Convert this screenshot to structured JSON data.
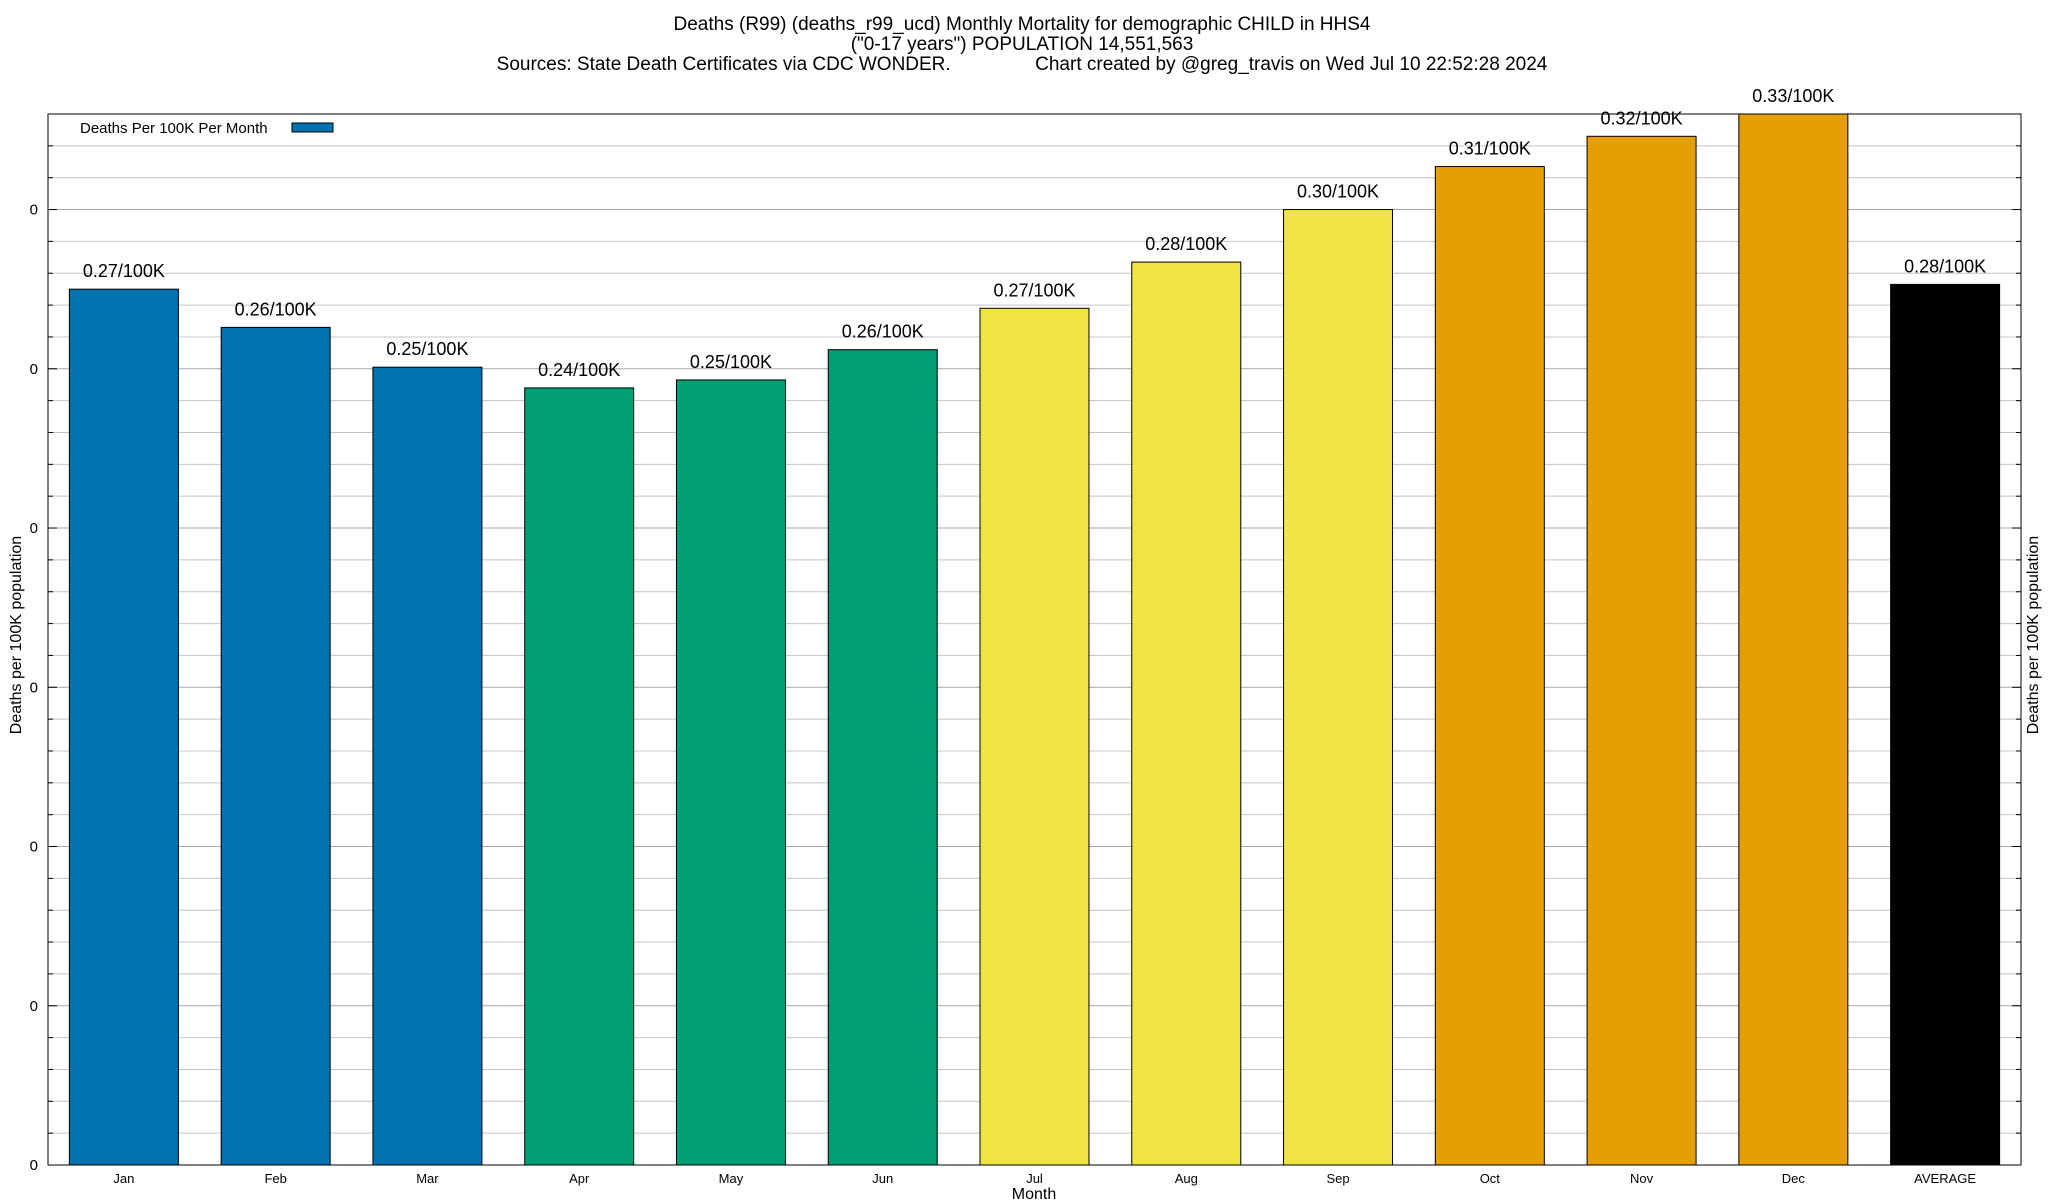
{
  "chart_data": {
    "type": "bar",
    "title_lines": [
      "Deaths (R99) (deaths_r99_ucd) Monthly Mortality for demographic CHILD in HHS4",
      "(\"0-17 years\") POPULATION 14,551,563",
      "Sources: State Death Certificates via CDC WONDER.                Chart created by @greg_travis on Wed Jul 10 22:52:28 2024"
    ],
    "xlabel": "Month",
    "ylabel": "Deaths per 100K population",
    "y2label": "Deaths per 100K population",
    "legend": {
      "label": "Deaths Per 100K Per Month",
      "color": "#0072b2",
      "placement": "top-left"
    },
    "ylim": [
      0,
      0.33
    ],
    "y_ticks": [
      0,
      0.05,
      0.1,
      0.15,
      0.2,
      0.25,
      0.3
    ],
    "y_tick_labels": [
      "0",
      "0",
      "0",
      "0",
      "0",
      "0",
      "0"
    ],
    "grid": true,
    "categories": [
      "Jan",
      "Feb",
      "Mar",
      "Apr",
      "May",
      "Jun",
      "Jul",
      "Aug",
      "Sep",
      "Oct",
      "Nov",
      "Dec",
      "AVERAGE"
    ],
    "values": [
      0.275,
      0.263,
      0.2505,
      0.244,
      0.2465,
      0.256,
      0.269,
      0.2835,
      0.3,
      0.3135,
      0.323,
      0.33,
      0.2765
    ],
    "value_labels": [
      "0.27/100K",
      "0.26/100K",
      "0.25/100K",
      "0.24/100K",
      "0.25/100K",
      "0.26/100K",
      "0.27/100K",
      "0.28/100K",
      "0.30/100K",
      "0.31/100K",
      "0.32/100K",
      "0.33/100K",
      "0.28/100K"
    ],
    "colors": [
      "#0072b2",
      "#0072b2",
      "#0072b2",
      "#009e73",
      "#009e73",
      "#009e73",
      "#f0e442",
      "#f0e442",
      "#f0e442",
      "#e69f00",
      "#e69f00",
      "#e69f00",
      "#000000"
    ]
  }
}
